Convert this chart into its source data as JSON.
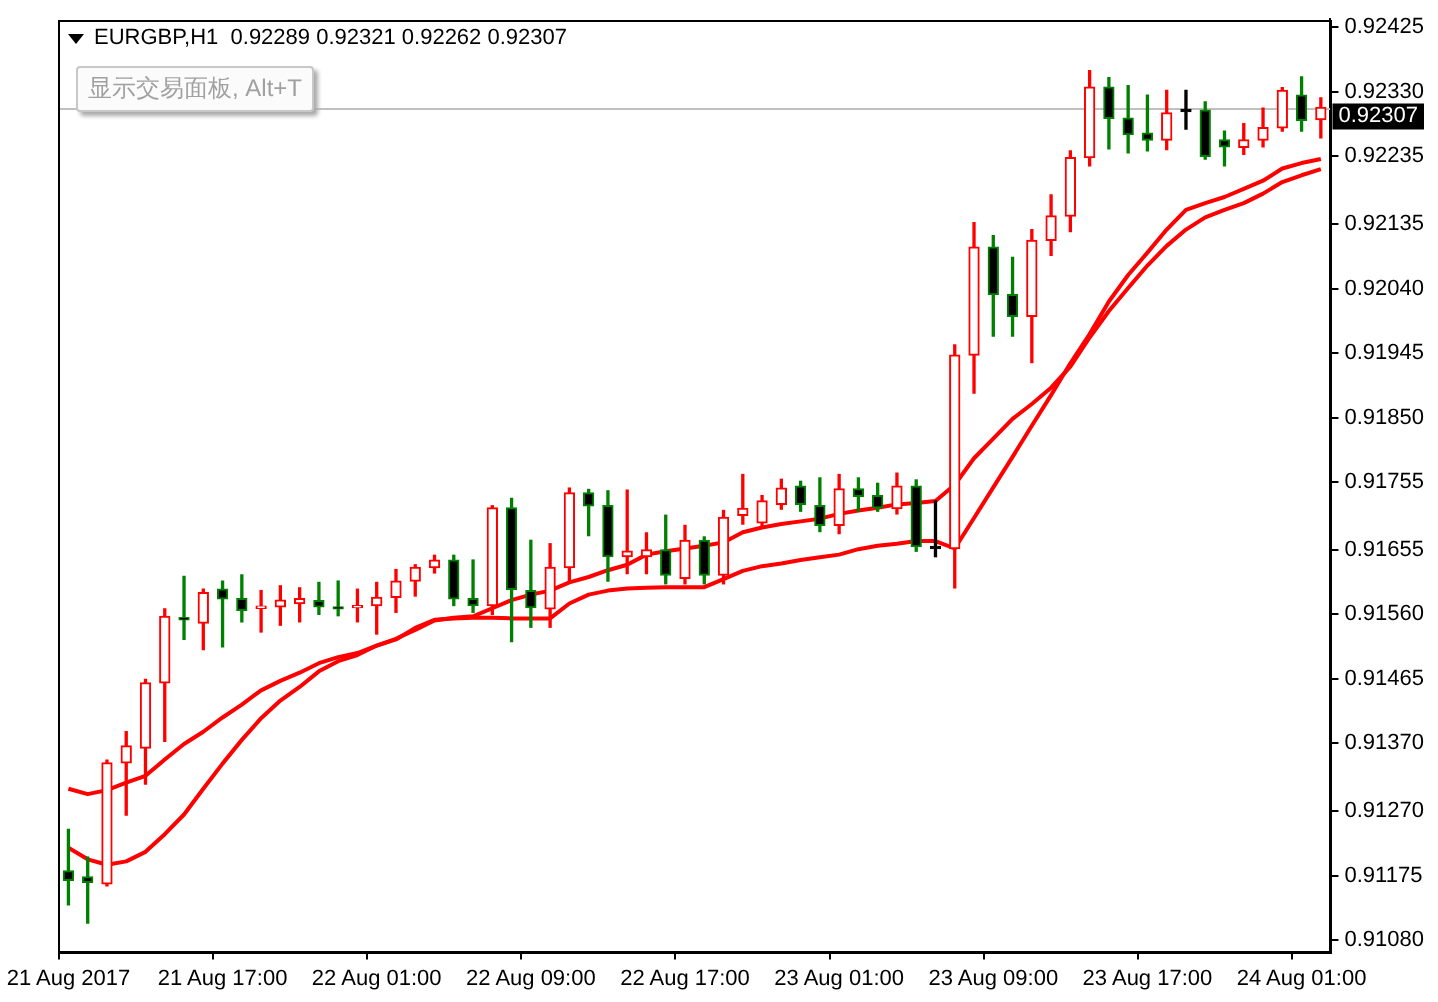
{
  "chart_data": {
    "type": "candlestick",
    "title": "EURGBP,H1  0.92289 0.92321 0.92262 0.92307",
    "annotations": [
      "显示交易面板, Alt+T"
    ],
    "categories": [
      "21 Aug 2017",
      null,
      null,
      null,
      null,
      null,
      null,
      null,
      "21 Aug 17:00",
      null,
      null,
      null,
      null,
      null,
      null,
      null,
      "22 Aug 01:00",
      null,
      null,
      null,
      null,
      null,
      null,
      null,
      "22 Aug 09:00",
      null,
      null,
      null,
      null,
      null,
      null,
      null,
      "22 Aug 17:00",
      null,
      null,
      null,
      null,
      null,
      null,
      null,
      "23 Aug 01:00",
      null,
      null,
      null,
      null,
      null,
      null,
      null,
      "23 Aug 09:00",
      null,
      null,
      null,
      null,
      null,
      null,
      null,
      "23 Aug 17:00",
      null,
      null,
      null,
      null,
      null,
      null,
      null,
      "24 Aug 01:00",
      null
    ],
    "ohlc": [
      [
        0.91182,
        0.91243,
        0.91132,
        0.91168
      ],
      [
        0.91173,
        0.91202,
        0.91105,
        0.91165
      ],
      [
        0.91163,
        0.91345,
        0.9116,
        0.91341
      ],
      [
        0.91341,
        0.91387,
        0.91264,
        0.91366
      ],
      [
        0.91363,
        0.91464,
        0.9131,
        0.91459
      ],
      [
        0.91459,
        0.91568,
        0.91373,
        0.91557
      ],
      [
        0.91555,
        0.91616,
        0.91523,
        0.91552
      ],
      [
        0.91547,
        0.91597,
        0.91508,
        0.91592
      ],
      [
        0.91597,
        0.91609,
        0.91512,
        0.91583
      ],
      [
        0.91583,
        0.91618,
        0.91549,
        0.91566
      ],
      [
        0.91569,
        0.91595,
        0.91534,
        0.91571
      ],
      [
        0.91571,
        0.91602,
        0.91544,
        0.91581
      ],
      [
        0.91576,
        0.91599,
        0.91549,
        0.91583
      ],
      [
        0.9158,
        0.91607,
        0.9156,
        0.91571
      ],
      [
        0.91571,
        0.91609,
        0.91558,
        0.91568
      ],
      [
        0.9157,
        0.91597,
        0.91549,
        0.91572
      ],
      [
        0.91573,
        0.91607,
        0.91531,
        0.91585
      ],
      [
        0.91585,
        0.91626,
        0.91563,
        0.91609
      ],
      [
        0.91609,
        0.91633,
        0.91587,
        0.91629
      ],
      [
        0.91629,
        0.91647,
        0.91621,
        0.9164
      ],
      [
        0.9164,
        0.91647,
        0.91573,
        0.91583
      ],
      [
        0.91583,
        0.9164,
        0.91563,
        0.91573
      ],
      [
        0.91573,
        0.9172,
        0.9156,
        0.91717
      ],
      [
        0.91717,
        0.91731,
        0.9152,
        0.91597
      ],
      [
        0.91595,
        0.91669,
        0.91541,
        0.9157
      ],
      [
        0.91568,
        0.91664,
        0.91541,
        0.91629
      ],
      [
        0.91629,
        0.91746,
        0.9161,
        0.91739
      ],
      [
        0.91739,
        0.91744,
        0.91676,
        0.9172
      ],
      [
        0.9172,
        0.91742,
        0.91609,
        0.91645
      ],
      [
        0.91645,
        0.91743,
        0.9162,
        0.91653
      ],
      [
        0.91645,
        0.9168,
        0.9162,
        0.91655
      ],
      [
        0.91655,
        0.91706,
        0.91605,
        0.91618
      ],
      [
        0.91613,
        0.91691,
        0.91605,
        0.91669
      ],
      [
        0.91669,
        0.91674,
        0.91605,
        0.91618
      ],
      [
        0.91618,
        0.91713,
        0.91605,
        0.91703
      ],
      [
        0.91706,
        0.91766,
        0.91693,
        0.91716
      ],
      [
        0.91695,
        0.91735,
        0.91688,
        0.91727
      ],
      [
        0.91722,
        0.91759,
        0.91715,
        0.91746
      ],
      [
        0.91749,
        0.91756,
        0.91712,
        0.91722
      ],
      [
        0.9172,
        0.91761,
        0.91682,
        0.91691
      ],
      [
        0.91691,
        0.91766,
        0.91679,
        0.91745
      ],
      [
        0.91745,
        0.91761,
        0.91712,
        0.91734
      ],
      [
        0.91735,
        0.91753,
        0.91712,
        0.91717
      ],
      [
        0.91716,
        0.91768,
        0.91708,
        0.91749
      ],
      [
        0.91749,
        0.91758,
        0.91653,
        0.9166
      ],
      [
        0.91657,
        0.91727,
        0.91645,
        0.91657
      ],
      [
        0.91657,
        0.91957,
        0.91599,
        0.91942
      ],
      [
        0.91942,
        0.92137,
        0.91886,
        0.92101
      ],
      [
        0.92101,
        0.92118,
        0.9197,
        0.92031
      ],
      [
        0.92031,
        0.92086,
        0.9197,
        0.91999
      ],
      [
        0.91999,
        0.92127,
        0.91931,
        0.92111
      ],
      [
        0.92111,
        0.92178,
        0.92089,
        0.92147
      ],
      [
        0.92147,
        0.92243,
        0.92124,
        0.92233
      ],
      [
        0.92233,
        0.92361,
        0.92221,
        0.92337
      ],
      [
        0.92337,
        0.92351,
        0.92246,
        0.92291
      ],
      [
        0.92291,
        0.92339,
        0.9224,
        0.92267
      ],
      [
        0.92269,
        0.92325,
        0.92243,
        0.92259
      ],
      [
        0.92259,
        0.92332,
        0.92245,
        0.92299
      ],
      [
        0.92301,
        0.92332,
        0.92275,
        0.92301
      ],
      [
        0.92303,
        0.92315,
        0.92231,
        0.92235
      ],
      [
        0.92259,
        0.92272,
        0.92221,
        0.92249
      ],
      [
        0.92248,
        0.92283,
        0.92238,
        0.92259
      ],
      [
        0.92259,
        0.92306,
        0.92249,
        0.92277
      ],
      [
        0.92277,
        0.92336,
        0.92272,
        0.92332
      ],
      [
        0.92325,
        0.92352,
        0.92272,
        0.92288
      ],
      [
        0.92289,
        0.92321,
        0.92262,
        0.92307
      ]
    ],
    "series": [
      {
        "type": "line",
        "color": "#ff0000",
        "values": [
          0.91303,
          0.91295,
          0.91301,
          0.91312,
          0.91322,
          0.91346,
          0.91369,
          0.91387,
          0.91408,
          0.91427,
          0.91448,
          0.91462,
          0.91474,
          0.91488,
          0.91497,
          0.91503,
          0.91514,
          0.91524,
          0.91537,
          0.91551,
          0.91555,
          0.91557,
          0.91569,
          0.91581,
          0.91589,
          0.91595,
          0.91607,
          0.91615,
          0.91625,
          0.91633,
          0.91648,
          0.91653,
          0.91657,
          0.91661,
          0.91666,
          0.91681,
          0.91688,
          0.91693,
          0.91697,
          0.91701,
          0.91708,
          0.91713,
          0.91717,
          0.91722,
          0.91724,
          0.91727,
          0.91751,
          0.9179,
          0.91819,
          0.91848,
          0.9187,
          0.91894,
          0.91925,
          0.91968,
          0.92007,
          0.92041,
          0.92074,
          0.92103,
          0.92127,
          0.92145,
          0.92156,
          0.92166,
          0.9218,
          0.92197,
          0.92207,
          0.92216
        ]
      },
      {
        "type": "line",
        "color": "#ff0000",
        "values": [
          0.91216,
          0.91199,
          0.91191,
          0.91196,
          0.9121,
          0.91236,
          0.91265,
          0.91303,
          0.9134,
          0.91375,
          0.91407,
          0.91433,
          0.91453,
          0.91476,
          0.91491,
          0.915,
          0.91514,
          0.91523,
          0.9154,
          0.91552,
          0.91554,
          0.91555,
          0.91555,
          0.91554,
          0.91554,
          0.91554,
          0.91576,
          0.91589,
          0.91595,
          0.91598,
          0.91599,
          0.916,
          0.916,
          0.916,
          0.91612,
          0.91624,
          0.91631,
          0.91635,
          0.9164,
          0.91644,
          0.91648,
          0.91656,
          0.91661,
          0.91664,
          0.91668,
          0.91668,
          0.91657,
          0.91702,
          0.91747,
          0.91792,
          0.91838,
          0.91883,
          0.9193,
          0.91973,
          0.92021,
          0.9206,
          0.92093,
          0.92127,
          0.92156,
          0.92166,
          0.92175,
          0.92187,
          0.92199,
          0.92217,
          0.92225,
          0.92231
        ]
      }
    ],
    "ylim": [
      0.91063,
      0.92437
    ],
    "yticks": [
      {
        "value": 0.9108,
        "label": "0.91080"
      },
      0.91175,
      {
        "value": 0.9127,
        "label": "0.91270"
      },
      {
        "value": 0.9137,
        "label": "0.91370"
      },
      0.91465,
      {
        "value": 0.9156,
        "label": "0.91560"
      },
      0.91655,
      0.91755,
      {
        "value": 0.9185,
        "label": "0.91850"
      },
      0.91945,
      {
        "value": 0.9204,
        "label": "0.92040"
      },
      0.92135,
      0.92235,
      {
        "value": 0.9233,
        "label": "0.92330"
      },
      0.92425
    ],
    "ref_lines": [
      {
        "axis": "y",
        "value": 0.92307,
        "label": "0.92307",
        "color": "#c0c0c0"
      }
    ],
    "grid": false,
    "legend": false,
    "marker": "none"
  }
}
